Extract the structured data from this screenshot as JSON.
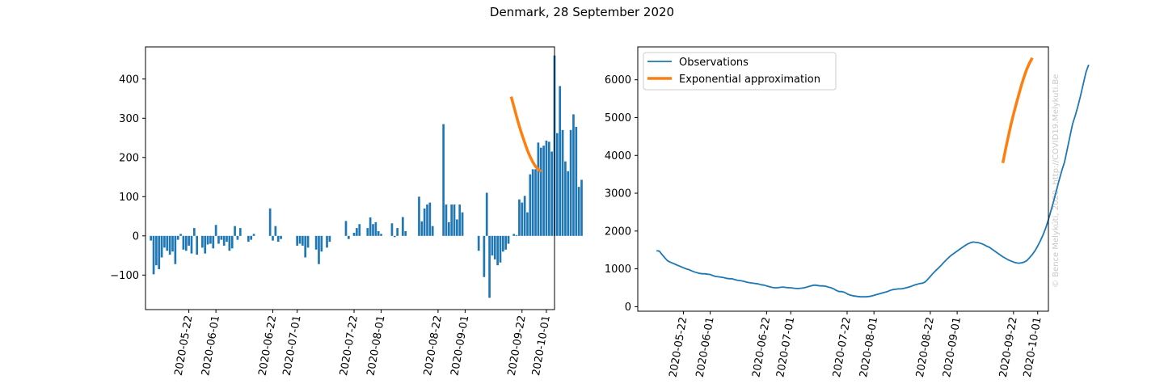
{
  "figure": {
    "title": "Denmark, 28 September 2020",
    "credit": "© Bence Melykúti, 2020. http://COVID19.Melykuti.Be"
  },
  "colors": {
    "observations": "#1f77b4",
    "approximation": "#ff7f0e",
    "axis": "#000000"
  },
  "chart_data": [
    {
      "type": "bar",
      "title": "",
      "xlabel": "",
      "ylabel": "",
      "x_start": "2020-05-08",
      "x_ticks": [
        "2020-05-22",
        "2020-06-01",
        "2020-06-22",
        "2020-07-01",
        "2020-07-22",
        "2020-08-01",
        "2020-08-22",
        "2020-09-01",
        "2020-09-22",
        "2020-10-01"
      ],
      "y_ticks": [
        -100,
        0,
        100,
        200,
        300,
        400
      ],
      "xlim": [
        "2020-05-06",
        "2020-10-04"
      ],
      "ylim": [
        -188,
        482
      ],
      "values": [
        -12,
        -98,
        -75,
        -85,
        -55,
        -30,
        -38,
        -48,
        -40,
        -72,
        -10,
        5,
        -35,
        -38,
        -25,
        -45,
        20,
        -48,
        0,
        -30,
        -45,
        -22,
        -20,
        -32,
        28,
        -20,
        -10,
        -25,
        -15,
        -38,
        -32,
        25,
        -10,
        20,
        0,
        0,
        -15,
        -10,
        5,
        0,
        0,
        0,
        0,
        0,
        70,
        -12,
        25,
        -15,
        -8,
        0,
        0,
        0,
        0,
        0,
        -25,
        -20,
        -25,
        -55,
        -30,
        0,
        0,
        -35,
        -72,
        -40,
        0,
        -30,
        -15,
        0,
        0,
        0,
        0,
        0,
        38,
        -8,
        0,
        8,
        20,
        30,
        0,
        0,
        20,
        47,
        30,
        35,
        12,
        5,
        0,
        0,
        0,
        32,
        -3,
        20,
        0,
        48,
        12,
        0,
        0,
        0,
        0,
        100,
        37,
        70,
        80,
        85,
        25,
        0,
        0,
        0,
        285,
        80,
        35,
        80,
        80,
        42,
        80,
        60,
        0,
        0,
        0,
        0,
        0,
        -38,
        0,
        -105,
        110,
        -158,
        -50,
        -60,
        -75,
        -68,
        -40,
        -35,
        -20,
        0,
        5,
        2,
        93,
        85,
        102,
        60,
        157,
        170,
        170,
        238,
        225,
        230,
        243,
        240,
        215,
        460,
        262,
        382,
        270,
        190,
        165,
        270,
        310,
        278,
        125,
        143
      ],
      "fit_x": [
        "2020-09-18",
        "2020-09-29"
      ],
      "fit_values": [
        355,
        330,
        304,
        280,
        258,
        238,
        218,
        202,
        188,
        177,
        170,
        164
      ]
    },
    {
      "type": "line",
      "title": "",
      "xlabel": "",
      "ylabel": "",
      "x_start": "2020-05-12",
      "x_ticks": [
        "2020-05-22",
        "2020-06-01",
        "2020-06-22",
        "2020-07-01",
        "2020-07-22",
        "2020-08-01",
        "2020-08-22",
        "2020-09-01",
        "2020-09-22",
        "2020-10-01"
      ],
      "y_ticks": [
        0,
        1000,
        2000,
        3000,
        4000,
        5000,
        6000
      ],
      "xlim": [
        "2020-05-05",
        "2020-10-05"
      ],
      "ylim": [
        -120,
        6870
      ],
      "legend": {
        "position": "top-left",
        "entries": [
          "Observations",
          "Exponential approximation"
        ]
      },
      "series": [
        {
          "name": "Observations",
          "values": [
            1480,
            1470,
            1380,
            1300,
            1220,
            1180,
            1150,
            1120,
            1090,
            1060,
            1030,
            1000,
            980,
            950,
            920,
            900,
            880,
            870,
            870,
            860,
            850,
            820,
            800,
            790,
            780,
            770,
            750,
            740,
            740,
            720,
            700,
            690,
            680,
            660,
            640,
            630,
            620,
            610,
            600,
            580,
            570,
            550,
            530,
            510,
            500,
            500,
            510,
            520,
            510,
            500,
            500,
            490,
            480,
            480,
            490,
            500,
            520,
            540,
            560,
            570,
            560,
            550,
            550,
            540,
            520,
            500,
            470,
            430,
            400,
            400,
            380,
            340,
            310,
            290,
            280,
            270,
            260,
            260,
            260,
            270,
            280,
            300,
            320,
            340,
            360,
            380,
            400,
            430,
            450,
            460,
            470,
            470,
            480,
            500,
            520,
            540,
            570,
            590,
            610,
            620,
            650,
            720,
            800,
            880,
            950,
            1020,
            1090,
            1170,
            1240,
            1310,
            1370,
            1420,
            1470,
            1520,
            1570,
            1620,
            1660,
            1690,
            1710,
            1700,
            1690,
            1670,
            1640,
            1600,
            1570,
            1520,
            1470,
            1420,
            1370,
            1320,
            1280,
            1240,
            1210,
            1180,
            1160,
            1150,
            1160,
            1180,
            1220,
            1300,
            1380,
            1480,
            1600,
            1740,
            1900,
            2080,
            2300,
            2550,
            2800,
            3080,
            3350,
            3600,
            3820,
            4150,
            4500,
            4830,
            5050,
            5300,
            5580,
            5900,
            6200,
            6400
          ]
        },
        {
          "name": "Exponential approximation",
          "fit_x": [
            "2020-09-18",
            "2020-09-29"
          ],
          "values": [
            3800,
            4150,
            4480,
            4800,
            5090,
            5360,
            5620,
            5870,
            6090,
            6290,
            6450,
            6580
          ]
        }
      ]
    }
  ]
}
